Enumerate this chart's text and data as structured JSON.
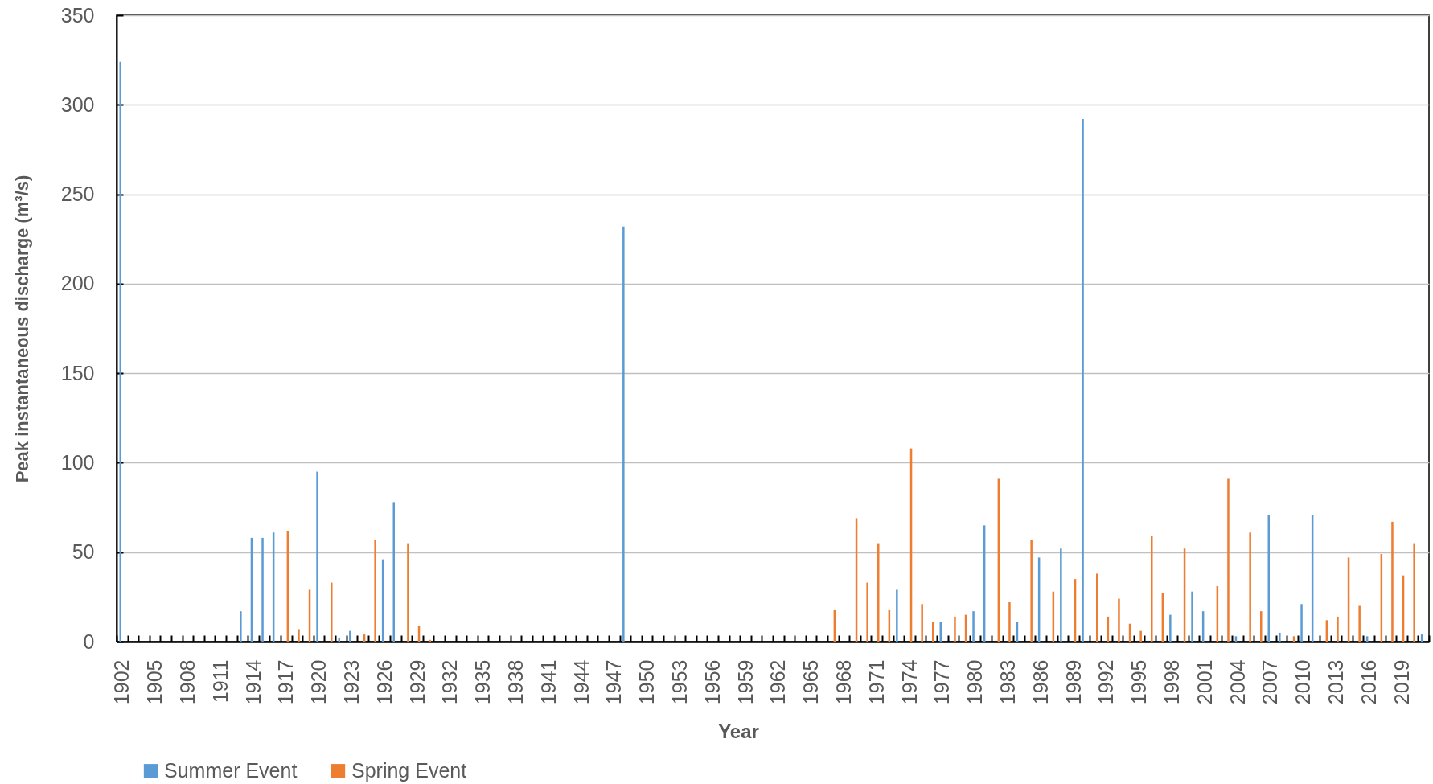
{
  "chart_data": {
    "type": "bar",
    "xlabel": "Year",
    "ylabel": "Peak instantaneous discharge (m³/s)",
    "categories": [
      "1902",
      null,
      null,
      "1905",
      null,
      null,
      "1908",
      null,
      null,
      "1911",
      null,
      null,
      "1914",
      null,
      null,
      "1917",
      null,
      null,
      "1920",
      null,
      null,
      "1923",
      null,
      null,
      "1926",
      null,
      null,
      "1929",
      null,
      null,
      "1932",
      null,
      null,
      "1935",
      null,
      null,
      "1938",
      null,
      null,
      "1941",
      null,
      null,
      "1944",
      null,
      null,
      "1947",
      null,
      null,
      "1950",
      null,
      null,
      "1953",
      null,
      null,
      "1956",
      null,
      null,
      "1959",
      null,
      null,
      "1962",
      null,
      null,
      "1965",
      null,
      null,
      "1968",
      null,
      null,
      "1971",
      null,
      null,
      "1974",
      null,
      null,
      "1977",
      null,
      null,
      "1980",
      null,
      null,
      "1983",
      null,
      null,
      "1986",
      null,
      null,
      "1989",
      null,
      null,
      "1992",
      null,
      null,
      "1995",
      null,
      null,
      "1998",
      null,
      null,
      "2001",
      null,
      null,
      "2004",
      null,
      null,
      "2007",
      null,
      null,
      "2010",
      null,
      null,
      "2013",
      null,
      null,
      "2016",
      null,
      null,
      "2019",
      null,
      null
    ],
    "series": [
      {
        "name": "Summer Event",
        "color": "#5b9bd5",
        "values": [
          324,
          null,
          null,
          null,
          null,
          null,
          null,
          null,
          null,
          null,
          null,
          17,
          58,
          58,
          61,
          null,
          null,
          null,
          95,
          null,
          2,
          6,
          null,
          null,
          46,
          78,
          null,
          null,
          null,
          null,
          null,
          null,
          null,
          null,
          null,
          null,
          null,
          null,
          null,
          null,
          null,
          null,
          null,
          null,
          null,
          null,
          232,
          null,
          null,
          null,
          null,
          null,
          null,
          null,
          null,
          null,
          null,
          null,
          null,
          null,
          null,
          null,
          null,
          null,
          null,
          null,
          null,
          null,
          null,
          null,
          null,
          29,
          null,
          null,
          null,
          11,
          null,
          null,
          17,
          65,
          null,
          null,
          11,
          null,
          47,
          null,
          52,
          null,
          292,
          null,
          null,
          null,
          null,
          null,
          null,
          null,
          15,
          null,
          28,
          17,
          null,
          null,
          3,
          null,
          null,
          71,
          5,
          null,
          21,
          71,
          null,
          null,
          null,
          null,
          3,
          null,
          null,
          null,
          null,
          4
        ]
      },
      {
        "name": "Spring Event",
        "color": "#ed7d31",
        "values": [
          null,
          null,
          null,
          null,
          null,
          null,
          null,
          null,
          null,
          null,
          null,
          null,
          null,
          null,
          null,
          62,
          7,
          29,
          null,
          33,
          null,
          null,
          4,
          57,
          null,
          null,
          55,
          9,
          1,
          null,
          null,
          null,
          null,
          null,
          null,
          null,
          null,
          null,
          null,
          null,
          null,
          null,
          null,
          null,
          null,
          null,
          null,
          null,
          null,
          null,
          null,
          null,
          null,
          null,
          null,
          null,
          null,
          null,
          null,
          null,
          null,
          null,
          null,
          null,
          null,
          18,
          null,
          69,
          33,
          55,
          18,
          null,
          108,
          21,
          11,
          null,
          14,
          15,
          null,
          null,
          91,
          22,
          null,
          57,
          null,
          28,
          null,
          35,
          null,
          38,
          14,
          24,
          10,
          6,
          59,
          27,
          null,
          52,
          null,
          null,
          31,
          91,
          null,
          61,
          17,
          null,
          null,
          3,
          null,
          null,
          12,
          14,
          47,
          20,
          null,
          49,
          67,
          37,
          55,
          null
        ]
      }
    ],
    "ylim": [
      0,
      350
    ],
    "yticks": [
      0,
      50,
      100,
      150,
      200,
      250,
      300,
      350
    ],
    "grid": "y",
    "legend": "bottom left"
  }
}
